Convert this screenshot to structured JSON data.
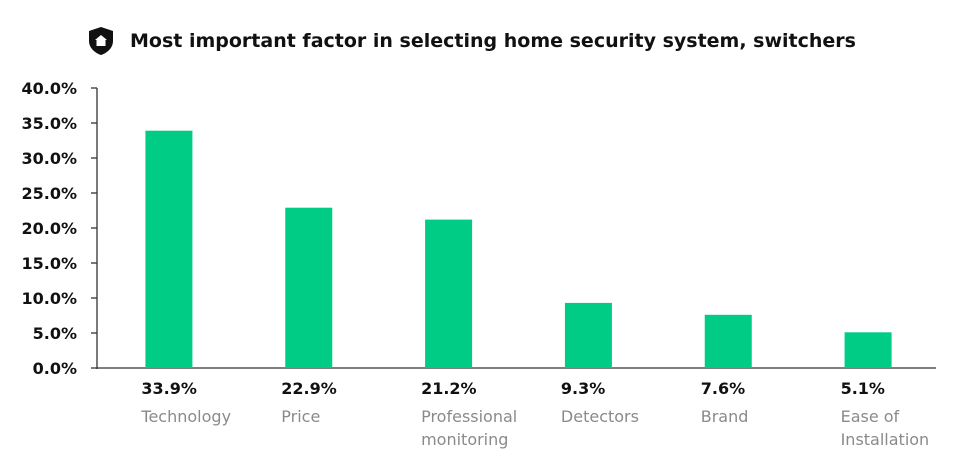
{
  "header": {
    "icon": "shield-home-icon",
    "title": "Most important factor in selecting home security system, switchers"
  },
  "chart_data": {
    "type": "bar",
    "title": "Most important factor in selecting home security system, switchers",
    "xlabel": "",
    "ylabel": "",
    "ylim": [
      0,
      40
    ],
    "yticks": [
      "0.0%",
      "5.0%",
      "10.0%",
      "15.0%",
      "20.0%",
      "25.0%",
      "30.0%",
      "35.0%",
      "40.0%"
    ],
    "categories": [
      "Technology",
      "Price",
      "Professional monitoring",
      "Detectors",
      "Brand",
      "Ease of Installation"
    ],
    "category_lines": [
      [
        "Technology"
      ],
      [
        "Price"
      ],
      [
        "Professional",
        "monitoring"
      ],
      [
        "Detectors"
      ],
      [
        "Brand"
      ],
      [
        "Ease of",
        "Installation"
      ]
    ],
    "values": [
      33.9,
      22.9,
      21.2,
      9.3,
      7.6,
      5.1
    ],
    "value_labels": [
      "33.9%",
      "22.9%",
      "21.2%",
      "9.3%",
      "7.6%",
      "5.1%"
    ],
    "bar_color": "#00cc85",
    "grid": false
  }
}
